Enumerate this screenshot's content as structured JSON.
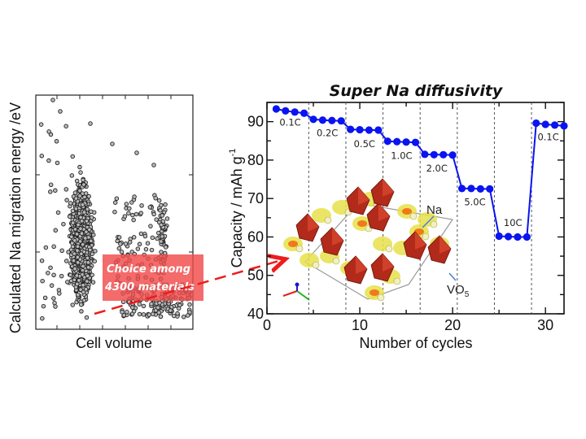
{
  "chart_data": [
    {
      "type": "scatter",
      "title": "",
      "xlabel": "Cell volume",
      "ylabel": "Calculated Na migration energy /eV",
      "x_ticks_labeled": false,
      "y_ticks_labeled": false,
      "annotation": {
        "line1": "Choice among",
        "line2": "4300 materials",
        "color": "#f04a4a"
      },
      "point_count_described": 4300,
      "marker_color": "#333333"
    },
    {
      "type": "line",
      "title": "Super Na diffusivity",
      "xlabel": "Number of cycles",
      "ylabel": "Capacity / mAh g",
      "ylabel_superscript": "-1",
      "xlim": [
        0,
        32
      ],
      "ylim": [
        40,
        95
      ],
      "x_ticks": [
        0,
        10,
        20,
        30
      ],
      "y_ticks": [
        40,
        50,
        60,
        70,
        80,
        90
      ],
      "series_color": "#0a14f0",
      "rate_boundaries": [
        4.5,
        8.5,
        12.5,
        16.5,
        20.5,
        24.5,
        28.5
      ],
      "series": [
        {
          "name": "Capacity",
          "x": [
            1,
            2,
            3,
            4,
            5,
            6,
            7,
            8,
            9,
            10,
            11,
            12,
            13,
            14,
            15,
            16,
            17,
            18,
            19,
            20,
            21,
            22,
            23,
            24,
            25,
            26,
            27,
            28,
            29,
            30,
            31,
            32
          ],
          "values": [
            93.3,
            92.8,
            92.5,
            92.2,
            90.6,
            90.4,
            90.3,
            90.2,
            88.0,
            87.9,
            87.8,
            87.8,
            84.9,
            84.8,
            84.7,
            84.6,
            81.5,
            81.4,
            81.4,
            81.3,
            72.6,
            72.6,
            72.5,
            72.5,
            60.2,
            60.1,
            60.0,
            60.0,
            89.6,
            89.3,
            89.1,
            88.9
          ]
        }
      ],
      "rate_labels": [
        {
          "label": "0.1C",
          "x": 2.5,
          "y": 89.0
        },
        {
          "label": "0.2C",
          "x": 6.5,
          "y": 86.2
        },
        {
          "label": "0.5C",
          "x": 10.5,
          "y": 83.4
        },
        {
          "label": "1.0C",
          "x": 14.5,
          "y": 80.3
        },
        {
          "label": "2.0C",
          "x": 18.3,
          "y": 77.0
        },
        {
          "label": "5.0C",
          "x": 22.4,
          "y": 68.2
        },
        {
          "label": "10C",
          "x": 26.5,
          "y": 62.8
        },
        {
          "label": "0.1C",
          "x": 30.3,
          "y": 85.2
        }
      ],
      "inset": {
        "description": "crystal structure",
        "labels": {
          "na": "Na",
          "vo5": "VO",
          "vo5_sub": "5"
        }
      }
    }
  ]
}
